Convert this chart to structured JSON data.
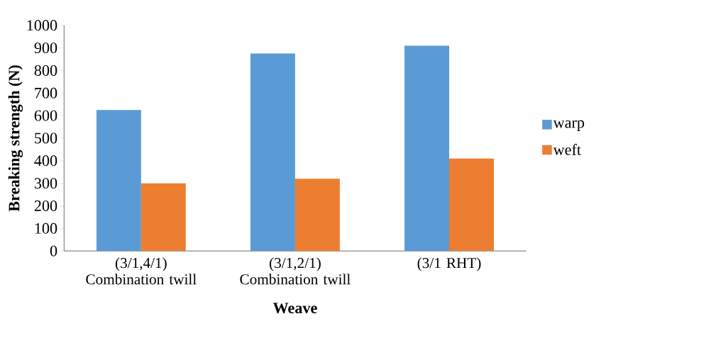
{
  "chart_data": {
    "type": "bar",
    "xlabel": "Weave",
    "ylabel": "Breaking strength (N)",
    "categories": [
      "(3/1,4/1) Combination twill",
      "(3/1,2/1) Combination twill",
      "(3/1 RHT)"
    ],
    "series": [
      {
        "name": "warp",
        "color": "#5b9bd5",
        "values": [
          625,
          875,
          910
        ]
      },
      {
        "name": "weft",
        "color": "#ed7d31",
        "values": [
          300,
          320,
          410
        ]
      }
    ],
    "ylim": [
      0,
      1000
    ],
    "yticks": [
      0,
      100,
      200,
      300,
      400,
      500,
      600,
      700,
      800,
      900,
      1000
    ],
    "grid": false,
    "legend": "right"
  }
}
